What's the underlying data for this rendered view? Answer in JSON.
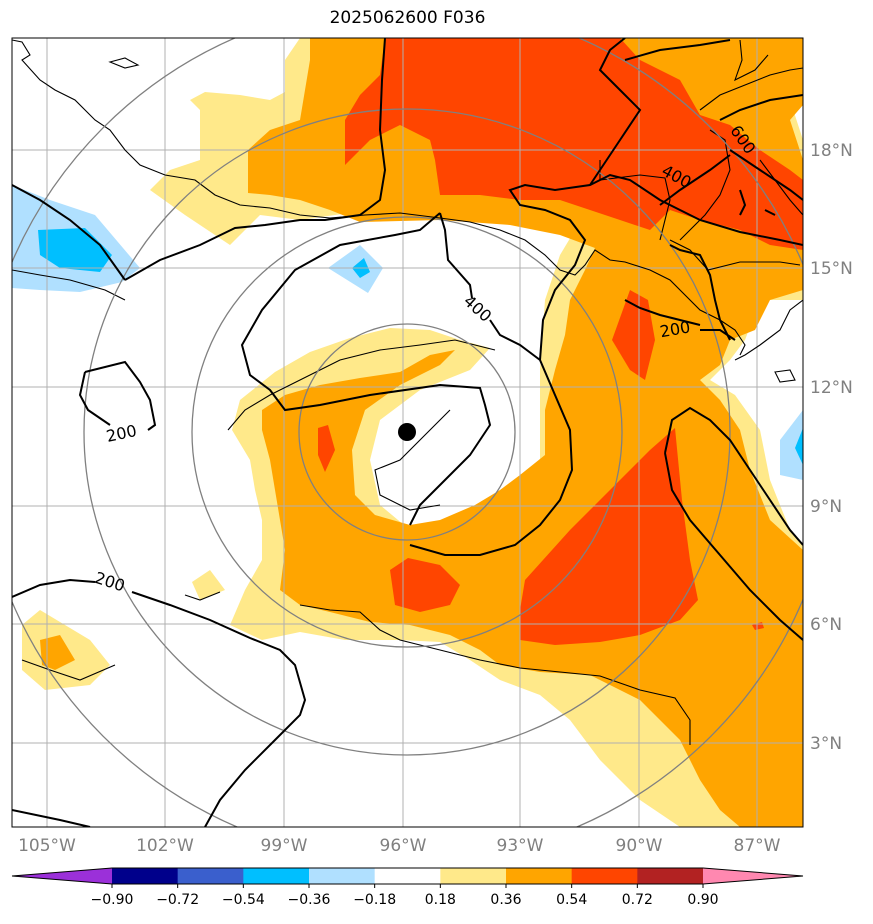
{
  "title": "2025062600 F036",
  "lon_ticks": [
    "105°W",
    "102°W",
    "99°W",
    "96°W",
    "93°W",
    "90°W",
    "87°W"
  ],
  "lat_ticks": [
    "18°N",
    "15°N",
    "12°N",
    "9°N",
    "6°N",
    "3°N"
  ],
  "colorbar": {
    "labels": [
      "−0.90",
      "−0.72",
      "−0.54",
      "−0.36",
      "−0.18",
      "0.18",
      "0.36",
      "0.54",
      "0.72",
      "0.90"
    ],
    "colors": [
      "#9b30d9",
      "#00008b",
      "#3a5fcd",
      "#00bfff",
      "#b0e0ff",
      "#ffffff",
      "#ffe98a",
      "#ffa500",
      "#ff4500",
      "#b22222",
      "#ff88b0"
    ]
  },
  "contour_labels": {
    "c200_w": "200",
    "c200_sw": "200",
    "c400_c": "400",
    "c400_ne": "400",
    "c200_ne": "200",
    "c600_ne": "600"
  },
  "colors": {
    "yellow": "#ffe98a",
    "orange": "#ffa500",
    "red": "#ff4500",
    "lightblue": "#b0e0ff",
    "blue": "#00bfff",
    "grid": "#b0b0b0",
    "ring": "#808080"
  },
  "center_marker": "storm-center-dot"
}
